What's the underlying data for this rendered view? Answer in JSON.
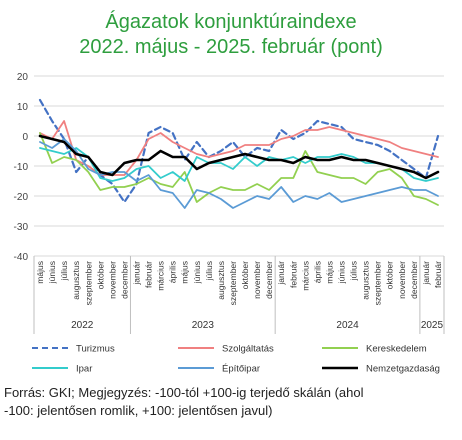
{
  "header": {
    "title_line1": "Ágazatok konjunktúraindexe",
    "title_line2": "2022. május - 2025. február (pont)"
  },
  "footnote": {
    "line1": "Forrás: GKI; Megjegyzés: -100-tól +100-ig terjedő skálán (ahol",
    "line2": "-100: jelentősen romlik, +100: jelentősen javul)"
  },
  "chart_data": {
    "type": "line",
    "title": "Ágazatok konjunktúraindexe 2022. május - 2025. február (pont)",
    "ylim": [
      -40,
      20
    ],
    "yticks": [
      20,
      10,
      0,
      -10,
      -20,
      -30,
      -40
    ],
    "categories": [
      "május",
      "június",
      "július",
      "augusztus",
      "szeptember",
      "október",
      "november",
      "december",
      "január",
      "február",
      "március",
      "április",
      "május",
      "június",
      "július",
      "augusztus",
      "szeptember",
      "október",
      "november",
      "december",
      "január",
      "február",
      "március",
      "április",
      "május",
      "június",
      "július",
      "augusztus",
      "szeptember",
      "október",
      "november",
      "december",
      "január",
      "február"
    ],
    "years": [
      {
        "label": "2022",
        "start": 0,
        "end": 7
      },
      {
        "label": "2023",
        "start": 8,
        "end": 19
      },
      {
        "label": "2024",
        "start": 20,
        "end": 31
      },
      {
        "label": "2025",
        "start": 32,
        "end": 33
      }
    ],
    "legend_position": "bottom",
    "series": [
      {
        "name": "Turizmus",
        "color": "#4472c4",
        "dash": true,
        "values": [
          12,
          5,
          -1,
          -12,
          -7,
          -13,
          -16,
          -22,
          -16,
          1,
          3,
          1,
          -8,
          -2,
          -7,
          -5,
          -2,
          -7,
          -4,
          -5,
          2,
          -1,
          1,
          5,
          4,
          3,
          -1,
          -2,
          -3,
          -5,
          -8,
          -11,
          -14,
          0
        ]
      },
      {
        "name": "Szolgáltatás",
        "color": "#f08080",
        "dash": false,
        "values": [
          1,
          -1,
          5,
          -8,
          -10,
          -13,
          -13,
          -13,
          -8,
          -1,
          1,
          -2,
          -4,
          -6,
          -7,
          -6,
          -5,
          -3,
          -3,
          -3,
          -1,
          0,
          2,
          2,
          3,
          2,
          1,
          0,
          -1,
          -2,
          -4,
          -5,
          -6,
          -7
        ]
      },
      {
        "name": "Kereskedelem",
        "color": "#92d050",
        "dash": false,
        "values": [
          1,
          -9,
          -7,
          -8,
          -12,
          -18,
          -17,
          -17,
          -16,
          -14,
          -16,
          -17,
          -12,
          -22,
          -19,
          -17,
          -18,
          -18,
          -16,
          -18,
          -14,
          -14,
          -5,
          -12,
          -13,
          -14,
          -14,
          -16,
          -12,
          -11,
          -14,
          -20,
          -21,
          -23
        ]
      },
      {
        "name": "Ipar",
        "color": "#33cccc",
        "dash": false,
        "values": [
          -4,
          -5,
          -6,
          -4,
          -7,
          -14,
          -15,
          -14,
          -11,
          -10,
          -14,
          -12,
          -15,
          -7,
          -9,
          -9,
          -11,
          -7,
          -10,
          -7,
          -8,
          -7,
          -9,
          -7,
          -7,
          -6,
          -7,
          -9,
          -9,
          -10,
          -11,
          -14,
          -15,
          -14
        ]
      },
      {
        "name": "Építőipar",
        "color": "#5b9bd5",
        "dash": false,
        "values": [
          -2,
          -4,
          -1,
          -5,
          -11,
          -13,
          -12,
          -12,
          -15,
          -13,
          -18,
          -19,
          -24,
          -18,
          -19,
          -21,
          -24,
          -22,
          -20,
          -21,
          -17,
          -22,
          -20,
          -21,
          -19,
          -22,
          -21,
          -20,
          -19,
          -18,
          -17,
          -18,
          -18,
          -20
        ]
      },
      {
        "name": "Nemzetgazdaság",
        "color": "#000000",
        "dash": false,
        "values": [
          0,
          -1,
          -2,
          -6,
          -7,
          -12,
          -13,
          -9,
          -8,
          -8,
          -5,
          -7,
          -7,
          -11,
          -9,
          -8,
          -7,
          -6,
          -7,
          -8,
          -8,
          -9,
          -7,
          -8,
          -8,
          -7,
          -8,
          -8,
          -9,
          -10,
          -11,
          -12,
          -14,
          -12
        ]
      }
    ]
  }
}
